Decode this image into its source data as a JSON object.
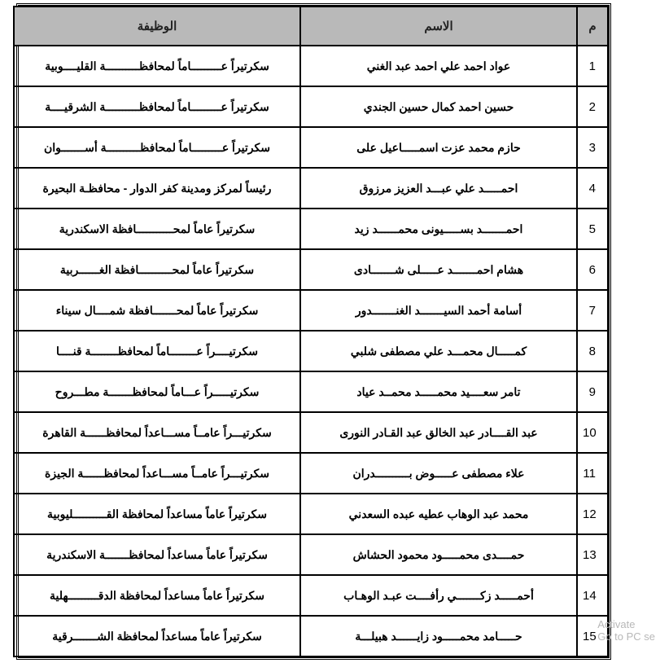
{
  "columns": {
    "num": "م",
    "name": "الاسم",
    "job": "الوظيفة"
  },
  "rows": [
    {
      "num": "1",
      "name": "عواد احمد علي احمد عبد الغني",
      "job": "سكرتيراً عـــــــــاماً لمحافظــــــــــة القليــــوبية"
    },
    {
      "num": "2",
      "name": "حسين احمد كمال حسين الجندي",
      "job": "سكرتيراً عـــــــــاماً لمحافظــــــــــة الشرقيــــة"
    },
    {
      "num": "3",
      "name": "حازم محمد عزت اسمـــــاعيل على",
      "job": "سكرتيراً عـــــــــاماً لمحافظــــــــــة أســـــــوان"
    },
    {
      "num": "4",
      "name": "احمـــــد علي عبـــد العزيز مرزوق",
      "job": "رئيساً لمركز ومدينة كفر الدوار - محافظـة البحيرة"
    },
    {
      "num": "5",
      "name": "احمـــــــد بســـــيونى محمــــــد زيد",
      "job": "سكرتيراً عاماً لمحـــــــــــافظة الاسكندرية"
    },
    {
      "num": "6",
      "name": "هشام احمـــــــد عـــــلى شـــــــادى",
      "job": "سكرتيراً عاماً لمحــــــــــافظة الغــــــربية"
    },
    {
      "num": "7",
      "name": "أسامة أحمد السيـــــــد الغنـــــــدور",
      "job": "سكرتيراً عاماً لمحـــــــافظة شمــــال سيناء"
    },
    {
      "num": "8",
      "name": "كمـــــال محمـــد علي مصطفى شلبي",
      "job": "سكرتيــــراً عــــــــاماً لمحافظــــــــة قنــــا"
    },
    {
      "num": "9",
      "name": "تامر سعــــيد محمـــــد محمــد عياد",
      "job": "سكرتيـــــراً عـــاماً لمحافظـــــــة مطـــروح"
    },
    {
      "num": "10",
      "name": "عبد القــــادر عبد الخالق عبد القـادر النورى",
      "job": "سكرتيـــراً عامــاً مســـاعداً لمحافظــــــة القاهرة"
    },
    {
      "num": "11",
      "name": "علاء مصطفى عـــــوض بــــــــــدران",
      "job": "سكرتيـــراً عامــاً مســـاعداً لمحافظــــــة الجيزة"
    },
    {
      "num": "12",
      "name": "محمد عبد الوهاب عطيه عبده السعدني",
      "job": "سكرتيراً عاماً مساعداً لمحافظة القــــــــــليوبية"
    },
    {
      "num": "13",
      "name": "حمــــدى محمـــــود محمود الحشاش",
      "job": "سكرتيراً عاماً مساعداً لمحافظـــــــة الاسكندرية"
    },
    {
      "num": "14",
      "name": "أحمـــــد زكـــــــي رأفــــت عبـد الوهـاب",
      "job": "سكرتيراً عاماً مساعداً لمحافظة الدقـــــــــهلية"
    },
    {
      "num": "15",
      "name": "حـــــامد محمـــــود زايــــــد هبيلـــة",
      "job": "سكرتيراً عاماً مساعداً لمحافظة الشـــــــرقية"
    }
  ],
  "watermark": {
    "line1": "Activate",
    "line2": "Go to PC se"
  }
}
